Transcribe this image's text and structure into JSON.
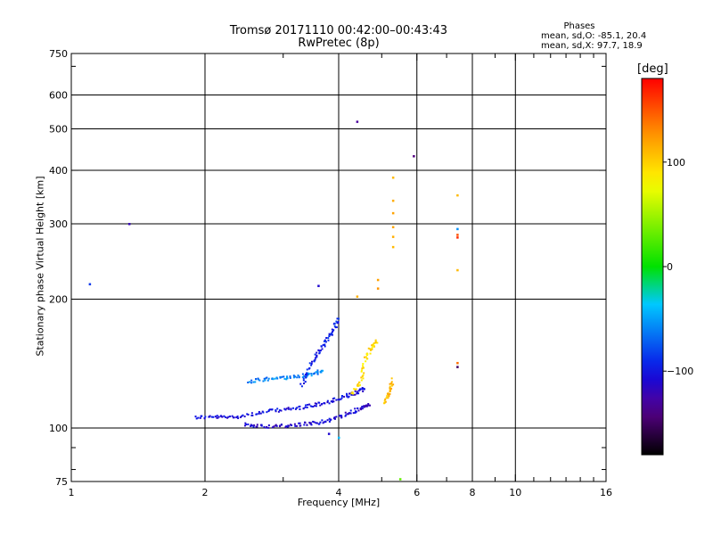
{
  "chart_data": {
    "type": "scatter",
    "title": "Tromsø 20171110 00:42:00–00:43:43",
    "subtitle": "RwPretec (8p)",
    "xlabel": "Frequency [MHz]",
    "ylabel": "Stationary phase Virtual Height [km]",
    "x_scale": "log",
    "y_scale": "log",
    "xlim": [
      1,
      16
    ],
    "ylim": [
      75,
      750
    ],
    "x_ticks": [
      1,
      2,
      4,
      6,
      8,
      10,
      16
    ],
    "x_tick_labels": [
      "1",
      "2",
      "4",
      "6",
      "8",
      "10",
      "16"
    ],
    "y_ticks": [
      75,
      100,
      200,
      300,
      400,
      500,
      600,
      750
    ],
    "y_tick_labels": [
      "75",
      "100",
      "200",
      "300",
      "400",
      "500",
      "600",
      "750"
    ],
    "grid": true,
    "stats": {
      "heading": "Phases",
      "line_o": "mean, sd,O: -85.1, 20.4",
      "line_x": "mean, sd,X: 97.7, 18.9"
    },
    "colorbar": {
      "label": "[deg]",
      "range": [
        -180,
        180
      ],
      "ticks": [
        100,
        0,
        -100
      ],
      "tick_labels": [
        "100",
        "0",
        "−100"
      ]
    },
    "traces": [
      {
        "x": [
          1.9,
          2.1,
          2.3,
          2.6,
          2.9,
          3.2,
          3.5,
          3.8,
          4.1,
          4.4,
          4.6
        ],
        "y": [
          106,
          106,
          106,
          108,
          110,
          111,
          113,
          115,
          118,
          121,
          124
        ],
        "phase": -105
      },
      {
        "x": [
          2.45,
          2.7,
          3.0,
          3.3,
          3.6,
          3.9,
          4.2,
          4.5,
          4.7
        ],
        "y": [
          102,
          101,
          101,
          102,
          103,
          105,
          108,
          111,
          114
        ],
        "phase": -110
      },
      {
        "x": [
          2.5,
          2.75,
          3.0,
          3.25,
          3.5,
          3.7
        ],
        "y": [
          128,
          130,
          131,
          132,
          134,
          136
        ],
        "phase": -60
      },
      {
        "x": [
          3.3,
          3.45,
          3.6,
          3.75,
          3.9,
          4.0
        ],
        "y": [
          125,
          140,
          150,
          160,
          170,
          180
        ],
        "phase": -95
      },
      {
        "x": [
          4.3,
          4.5,
          4.6,
          4.75,
          4.9
        ],
        "y": [
          120,
          130,
          145,
          155,
          160
        ],
        "phase": 95
      },
      {
        "x": [
          5.1,
          5.2,
          5.3
        ],
        "y": [
          115,
          122,
          130
        ],
        "phase": 110
      }
    ],
    "points": [
      {
        "x": 1.1,
        "y": 217,
        "phase": -85
      },
      {
        "x": 1.35,
        "y": 300,
        "phase": -120
      },
      {
        "x": 3.6,
        "y": 215,
        "phase": -110
      },
      {
        "x": 4.4,
        "y": 520,
        "phase": -130
      },
      {
        "x": 4.4,
        "y": 203,
        "phase": 115
      },
      {
        "x": 5.9,
        "y": 432,
        "phase": -140
      },
      {
        "x": 4.9,
        "y": 222,
        "phase": 120
      },
      {
        "x": 4.9,
        "y": 212,
        "phase": 125
      },
      {
        "x": 5.3,
        "y": 385,
        "phase": 110
      },
      {
        "x": 5.3,
        "y": 340,
        "phase": 115
      },
      {
        "x": 5.3,
        "y": 318,
        "phase": 120
      },
      {
        "x": 5.3,
        "y": 295,
        "phase": 118
      },
      {
        "x": 5.3,
        "y": 280,
        "phase": 115
      },
      {
        "x": 5.3,
        "y": 265,
        "phase": 110
      },
      {
        "x": 7.4,
        "y": 350,
        "phase": 110
      },
      {
        "x": 7.4,
        "y": 292,
        "phase": -55
      },
      {
        "x": 7.4,
        "y": 283,
        "phase": 150
      },
      {
        "x": 7.4,
        "y": 279,
        "phase": 165
      },
      {
        "x": 7.4,
        "y": 234,
        "phase": 110
      },
      {
        "x": 7.4,
        "y": 142,
        "phase": 140
      },
      {
        "x": 7.4,
        "y": 139,
        "phase": -150
      },
      {
        "x": 5.5,
        "y": 76,
        "phase": 30
      },
      {
        "x": 4.0,
        "y": 95,
        "phase": -40
      },
      {
        "x": 3.8,
        "y": 97,
        "phase": -110
      }
    ]
  }
}
